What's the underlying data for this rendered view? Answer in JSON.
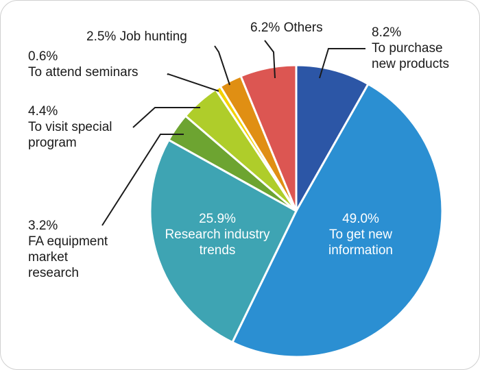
{
  "chart_data": {
    "type": "pie",
    "colors": [
      "#2c56a6",
      "#2b8fd2",
      "#3ea4b3",
      "#6da431",
      "#afcd2a",
      "#f3d100",
      "#e08f13",
      "#dc5652"
    ],
    "slices": [
      {
        "value": 8.2,
        "pct": "8.2%",
        "label": [
          "To purchase",
          "new products"
        ]
      },
      {
        "value": 49.0,
        "pct": "49.0%",
        "label": [
          "To get new",
          "information"
        ]
      },
      {
        "value": 25.9,
        "pct": "25.9%",
        "label": [
          "Research industry",
          "trends"
        ]
      },
      {
        "value": 3.2,
        "pct": "3.2%",
        "label": [
          "FA equipment",
          "market",
          "research"
        ]
      },
      {
        "value": 4.4,
        "pct": "4.4%",
        "label": [
          "To visit special",
          "program"
        ]
      },
      {
        "value": 0.6,
        "pct": "0.6%",
        "label": [
          "To attend seminars"
        ]
      },
      {
        "value": 2.5,
        "pct": "2.5%",
        "label": [
          "Job hunting"
        ]
      },
      {
        "value": 6.2,
        "pct": "6.2%",
        "label": [
          "Others"
        ]
      }
    ]
  }
}
